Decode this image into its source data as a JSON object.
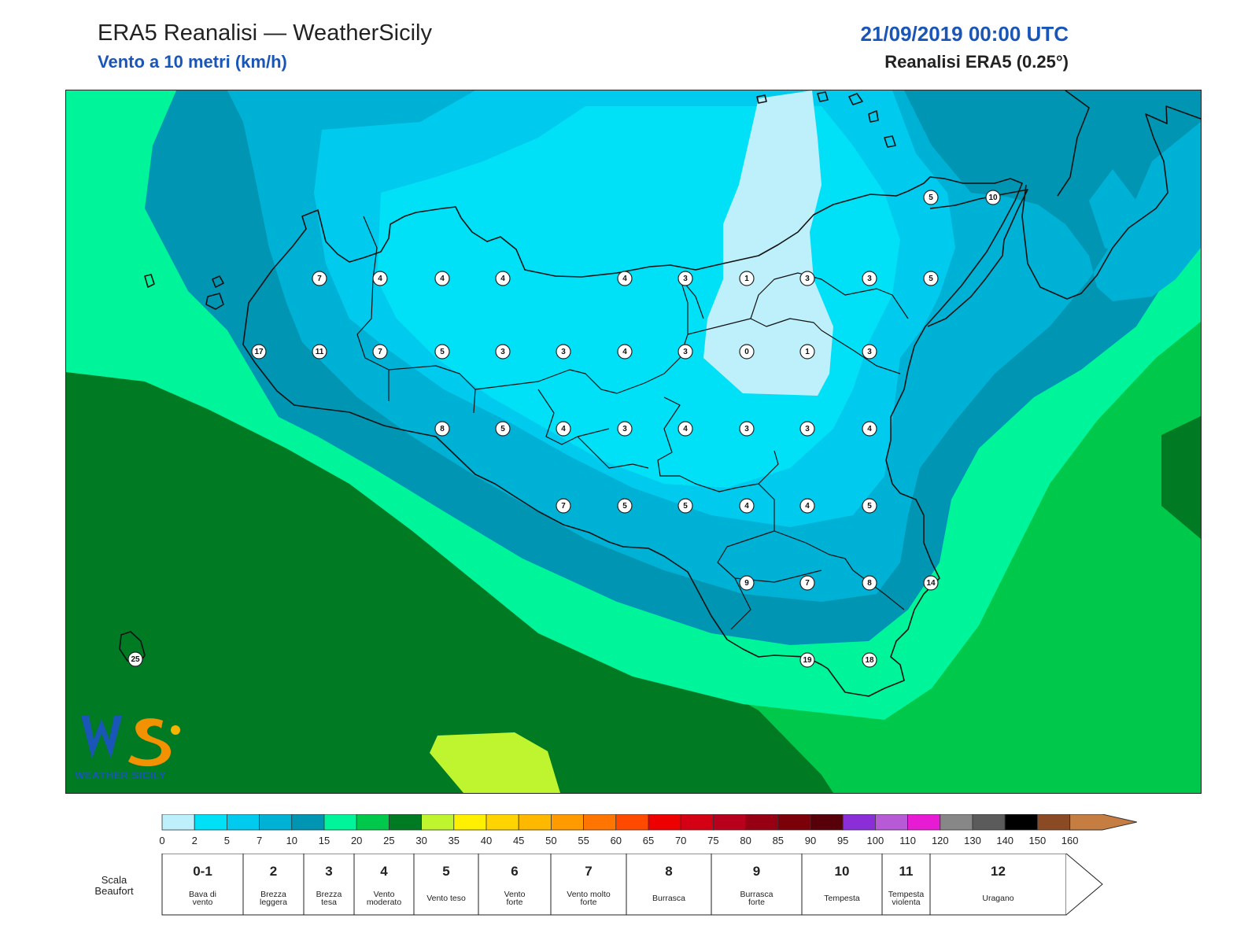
{
  "header": {
    "title": "ERA5 Reanalisi — WeatherSicily",
    "subtitle": "Vento a 10 metri (km/h)",
    "datetime": "21/09/2019 00:00 UTC",
    "source": "Reanalisi ERA5 (0.25°)"
  },
  "logo": {
    "text": "WEATHER SICILY",
    "letters": "WS"
  },
  "colors": {
    "accent_blue": "#1a56b8",
    "zone_0_2": "#bdf0fb",
    "zone_2_5": "#00e0f7",
    "zone_5_7": "#00cbee",
    "zone_7_10": "#00b1d6",
    "zone_10_15": "#0096b3",
    "zone_15_20": "#00f59a",
    "zone_20_25": "#00c84a",
    "zone_25_30": "#007a23",
    "zone_30_35": "#bff52e"
  },
  "wind_values_kmh": [
    "7",
    "4",
    "4",
    "4",
    "4",
    "3",
    "1",
    "3",
    "3",
    "5",
    "17",
    "11",
    "7",
    "5",
    "3",
    "3",
    "4",
    "3",
    "0",
    "1",
    "3",
    "8",
    "5",
    "4",
    "3",
    "4",
    "3",
    "3",
    "4",
    "7",
    "5",
    "5",
    "4",
    "4",
    "5",
    "9",
    "7",
    "8",
    "14",
    "19",
    "18",
    "25",
    "5",
    "10"
  ],
  "colorbar": {
    "ticks": [
      "0",
      "2",
      "5",
      "7",
      "10",
      "15",
      "20",
      "25",
      "30",
      "35",
      "40",
      "45",
      "50",
      "55",
      "60",
      "65",
      "70",
      "75",
      "80",
      "85",
      "90",
      "95",
      "100",
      "110",
      "120",
      "130",
      "140",
      "150",
      "160"
    ],
    "colors": [
      "#bdf0fb",
      "#00e0f7",
      "#00cbee",
      "#00b1d6",
      "#0096b3",
      "#00f59a",
      "#00c84a",
      "#007a23",
      "#bff52e",
      "#ffef00",
      "#ffd400",
      "#ffb800",
      "#ff9a00",
      "#ff7500",
      "#ff4a00",
      "#ee0000",
      "#d40013",
      "#b8001d",
      "#970012",
      "#7b0008",
      "#570009",
      "#8a2ed8",
      "#b75ad6",
      "#e81bd4",
      "#878787",
      "#5b5b5b",
      "#000000",
      "#8a4a23",
      "#c67d42"
    ]
  },
  "beaufort": {
    "label": "Scala Beaufort",
    "levels": [
      {
        "num": "0-1",
        "name": "Bava di vento"
      },
      {
        "num": "2",
        "name": "Brezza leggera"
      },
      {
        "num": "3",
        "name": "Brezza tesa"
      },
      {
        "num": "4",
        "name": "Vento moderato"
      },
      {
        "num": "5",
        "name": "Vento teso"
      },
      {
        "num": "6",
        "name": "Vento forte"
      },
      {
        "num": "7",
        "name": "Vento molto forte"
      },
      {
        "num": "8",
        "name": "Burrasca"
      },
      {
        "num": "9",
        "name": "Burrasca forte"
      },
      {
        "num": "10",
        "name": "Tempesta"
      },
      {
        "num": "11",
        "name": "Tempesta violenta"
      },
      {
        "num": "12",
        "name": "Uragano"
      }
    ]
  }
}
